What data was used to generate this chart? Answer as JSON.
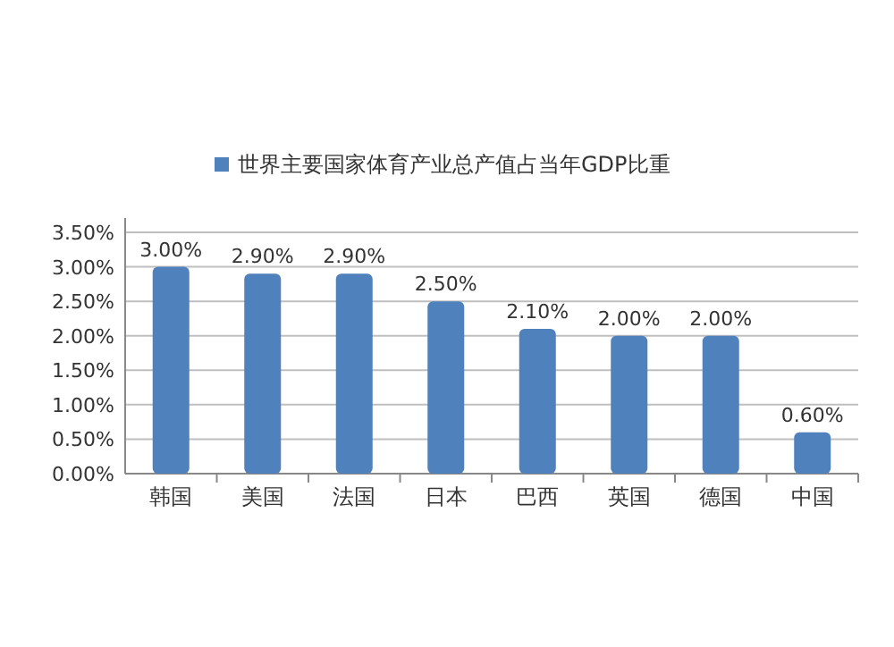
{
  "chart_data": {
    "type": "bar",
    "categories": [
      "韩国",
      "美国",
      "法国",
      "日本",
      "巴西",
      "英国",
      "德国",
      "中国"
    ],
    "series": [
      {
        "name": "世界主要国家体育产业总产值占当年GDP比重",
        "color": "#4f81bd",
        "values": [
          3.0,
          2.9,
          2.9,
          2.5,
          2.1,
          2.0,
          2.0,
          0.6
        ],
        "value_labels": [
          "3.00%",
          "2.90%",
          "2.90%",
          "2.50%",
          "2.10%",
          "2.00%",
          "2.00%",
          "0.60%"
        ]
      }
    ],
    "ylim": [
      0,
      3.5
    ],
    "yticks": [
      {
        "value": 0,
        "label": "0.00%"
      },
      {
        "value": 0.5,
        "label": "0.50%"
      },
      {
        "value": 1,
        "label": "1.00%"
      },
      {
        "value": 1.5,
        "label": "1.50%"
      },
      {
        "value": 2,
        "label": "2.00%"
      },
      {
        "value": 2.5,
        "label": "2.50%"
      },
      {
        "value": 3,
        "label": "3.00%"
      },
      {
        "value": 3.5,
        "label": "3.50%"
      }
    ],
    "grid": "y",
    "legend": "top"
  }
}
